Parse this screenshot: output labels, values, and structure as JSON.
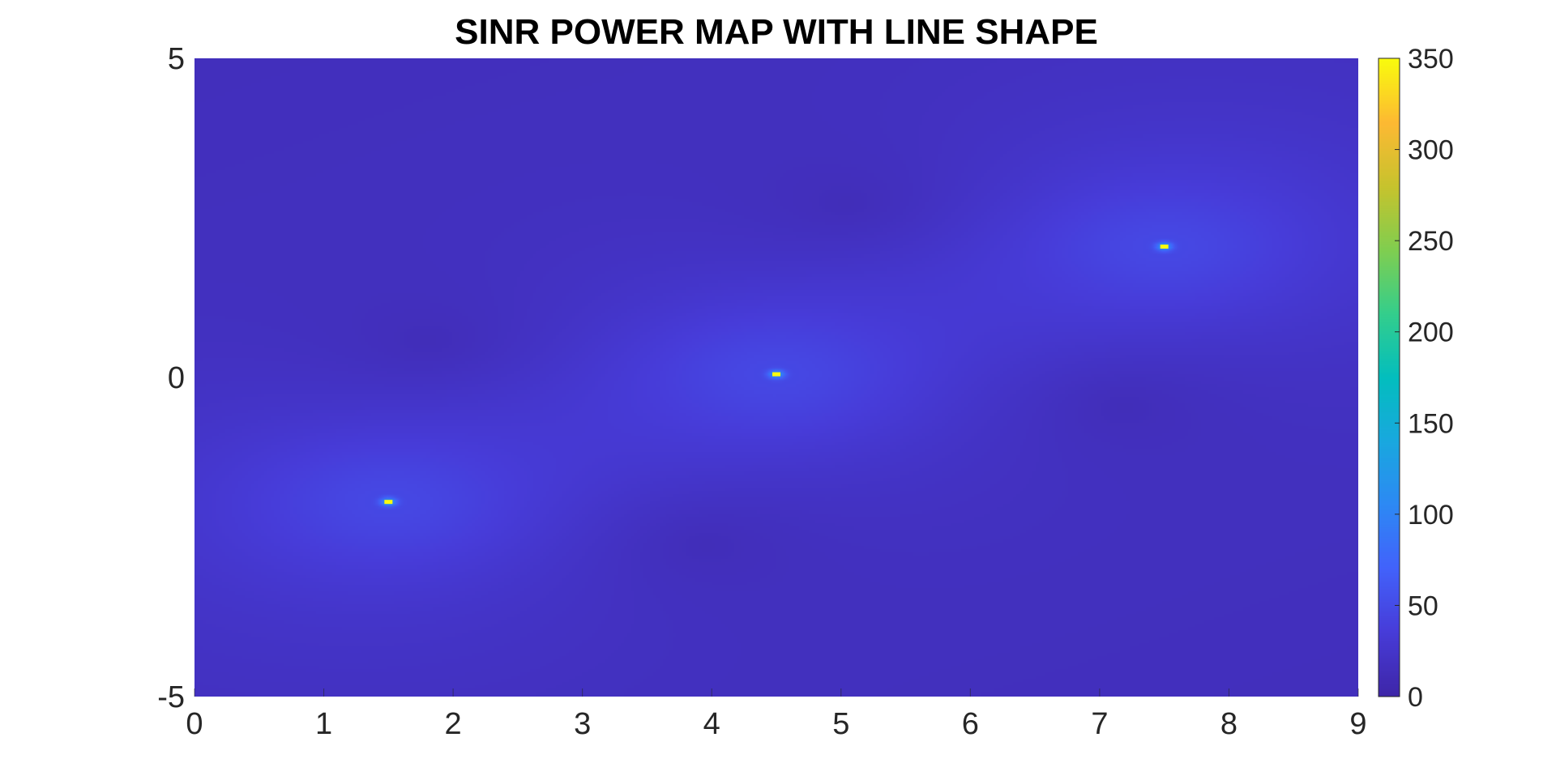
{
  "chart_data": {
    "type": "heatmap",
    "title": "SINR POWER MAP WITH LINE SHAPE",
    "xlabel": "",
    "ylabel": "",
    "xlim": [
      0,
      9
    ],
    "ylim": [
      -5,
      5
    ],
    "x_ticks": [
      0,
      1,
      2,
      3,
      4,
      5,
      6,
      7,
      8,
      9
    ],
    "y_ticks": [
      -5,
      0,
      5
    ],
    "colormap": "parula",
    "color_range": [
      0,
      350
    ],
    "colorbar_ticks": [
      0,
      50,
      100,
      150,
      200,
      250,
      300,
      350
    ],
    "colorbar_location": "right",
    "grid": false,
    "transmitters": [
      {
        "x": 1.5,
        "y": -1.95
      },
      {
        "x": 4.5,
        "y": 0.05
      },
      {
        "x": 7.5,
        "y": 2.05
      }
    ],
    "typical_background_value": 25,
    "peak_value": 350
  }
}
